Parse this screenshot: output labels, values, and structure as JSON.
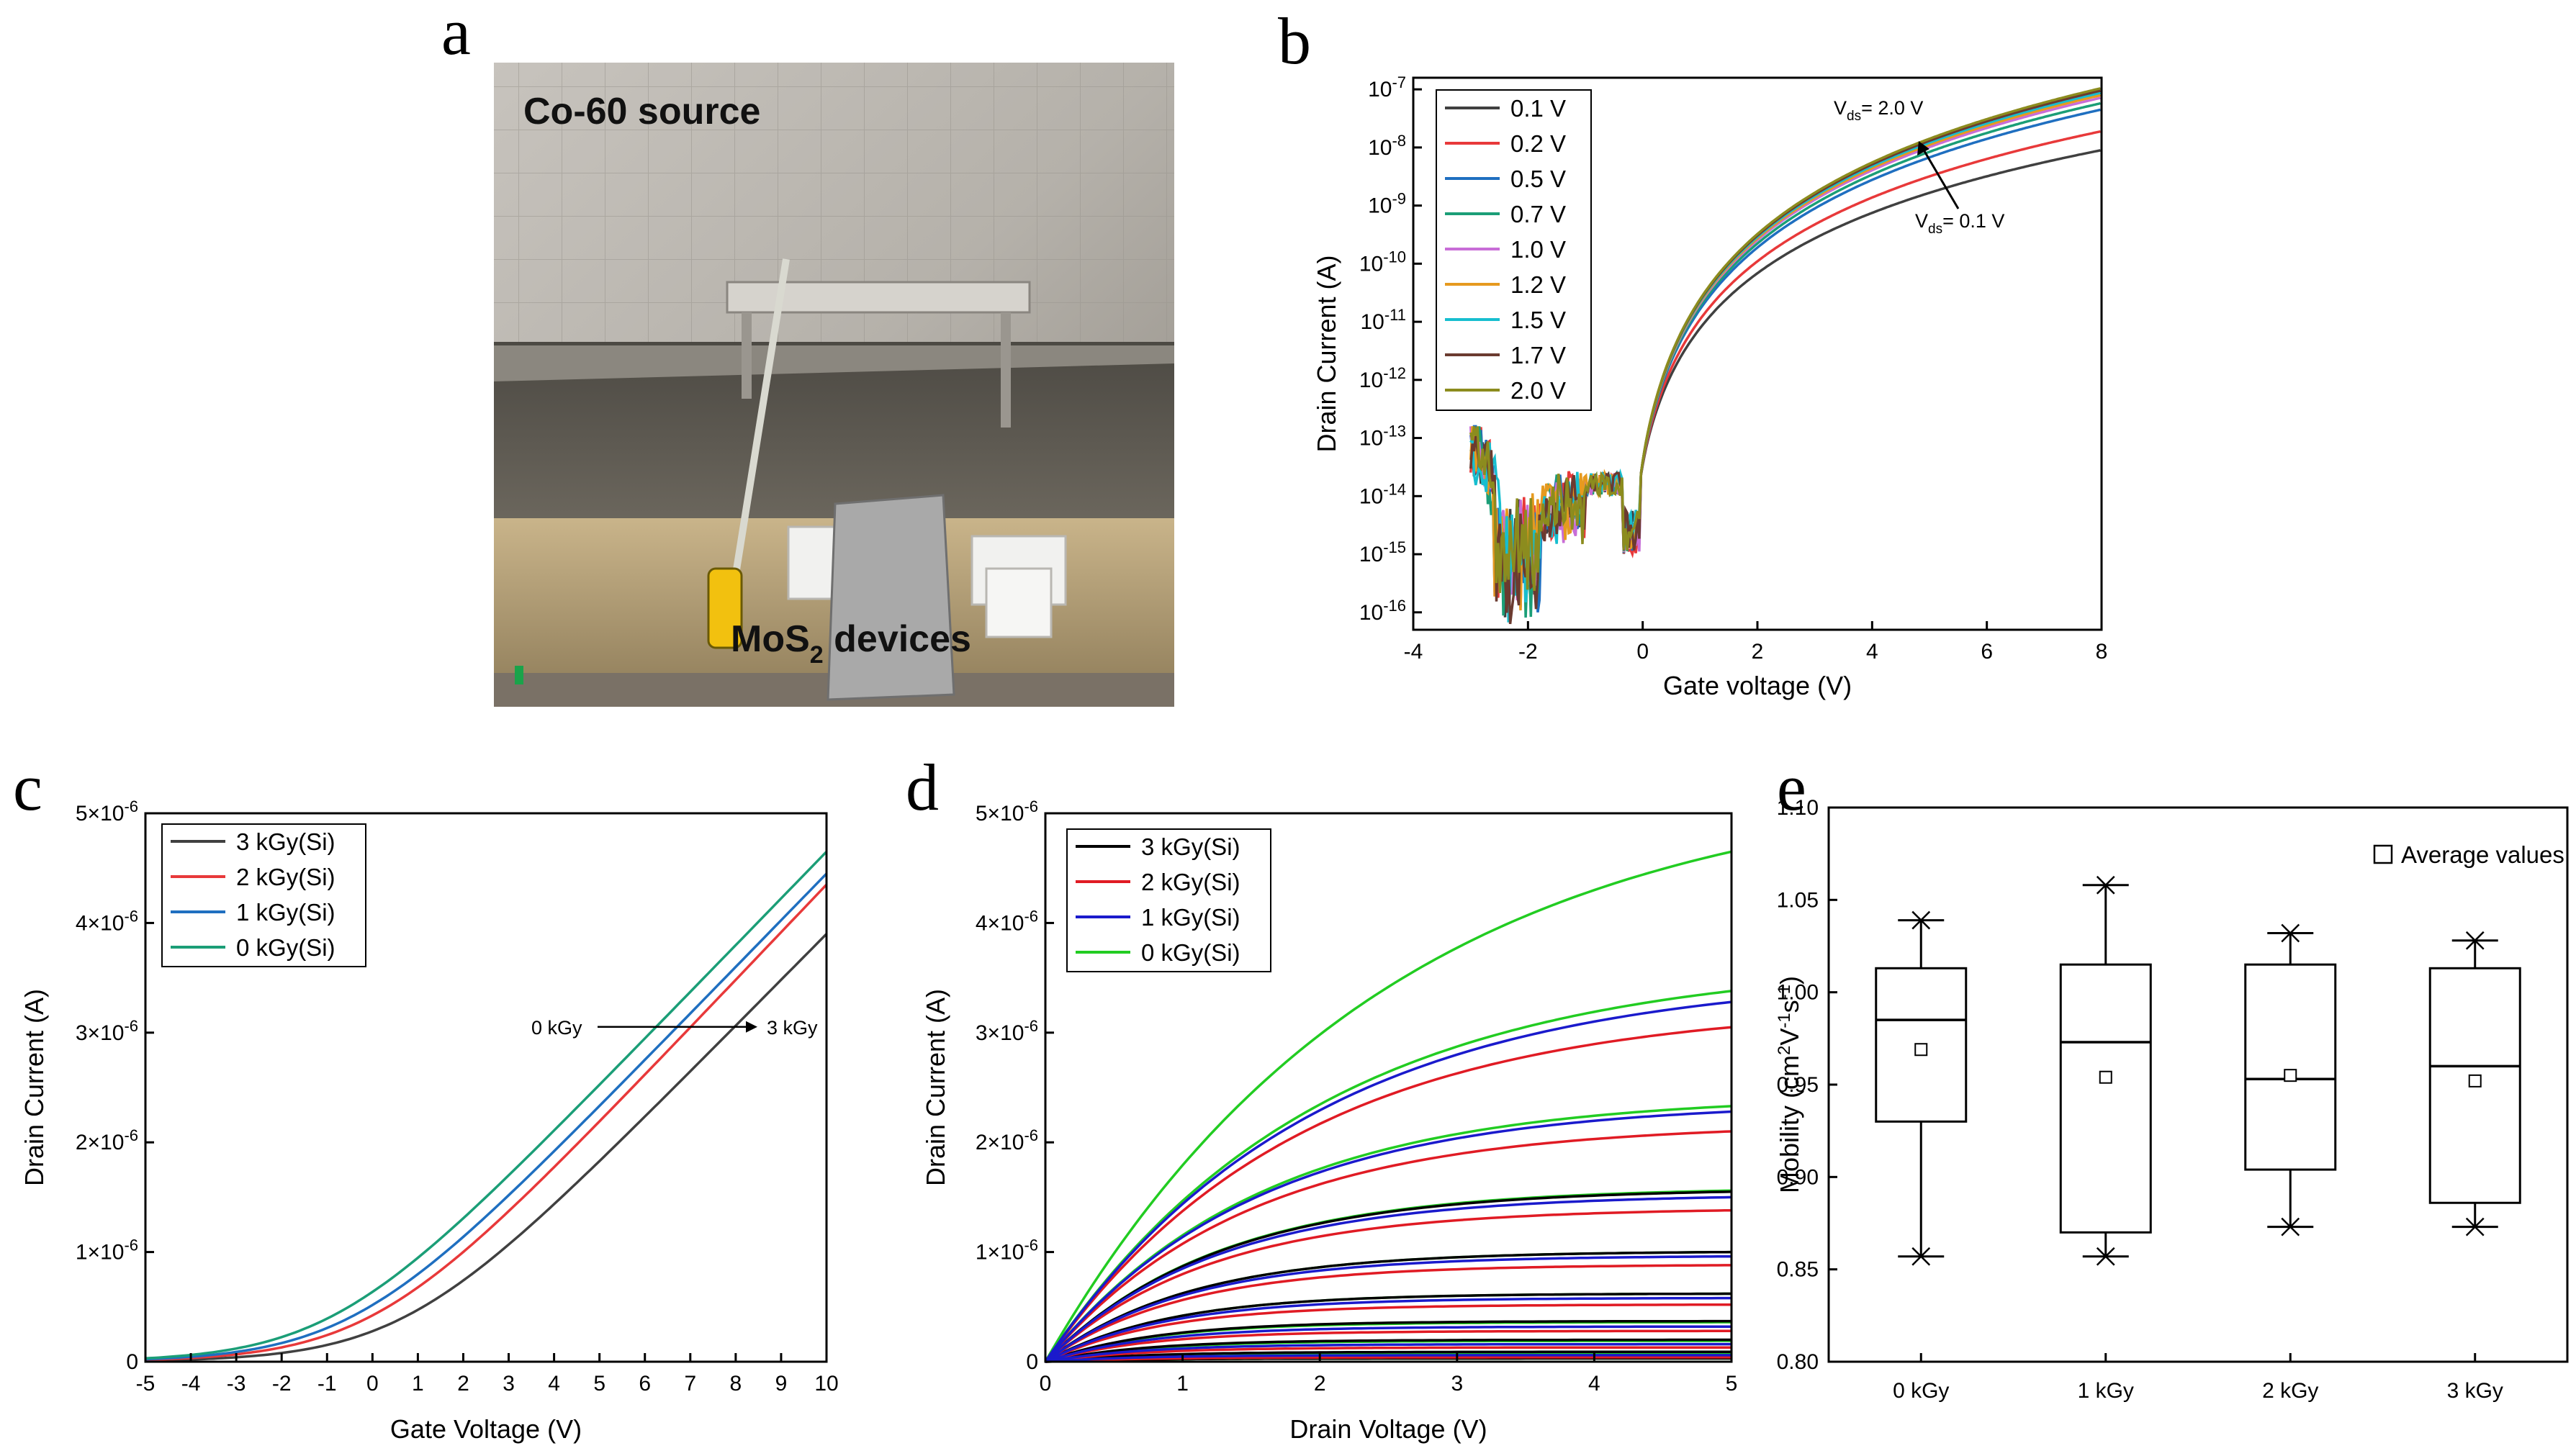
{
  "figure": {
    "panel_labels": [
      "a",
      "b",
      "c",
      "d",
      "e"
    ],
    "photo": {
      "source_label": "Co-60 source",
      "device_label": "MoS",
      "device_sub": "2",
      "device_suffix": " devices"
    }
  },
  "chart_data": [
    {
      "panel": "b",
      "type": "line",
      "yscale": "log",
      "xlabel": "Gate voltage (V)",
      "ylabel": "Drain Current (A)",
      "xlim": [
        -4,
        8
      ],
      "xticks": [
        -4,
        -2,
        0,
        2,
        4,
        6,
        8
      ],
      "ylim_exp": [
        -16.3,
        -6.8
      ],
      "yticks_exp": [
        -16,
        -15,
        -14,
        -13,
        -12,
        -11,
        -10,
        -9,
        -8,
        -7
      ],
      "legend_position": "top-left",
      "series": [
        {
          "name": "0.1 V",
          "color": "#404040",
          "vds": 0.1,
          "on_current": 9e-09
        },
        {
          "name": "0.2 V",
          "color": "#e8393a",
          "vds": 0.2,
          "on_current": 1.9e-08
        },
        {
          "name": "0.5 V",
          "color": "#1f6fc0",
          "vds": 0.5,
          "on_current": 4.5e-08
        },
        {
          "name": "0.7 V",
          "color": "#1b9e77",
          "vds": 0.7,
          "on_current": 5.8e-08
        },
        {
          "name": "1.0 V",
          "color": "#c86dd7",
          "vds": 1.0,
          "on_current": 7.2e-08
        },
        {
          "name": "1.2 V",
          "color": "#e69a1f",
          "vds": 1.2,
          "on_current": 8e-08
        },
        {
          "name": "1.5 V",
          "color": "#17becf",
          "vds": 1.5,
          "on_current": 8.8e-08
        },
        {
          "name": "1.7 V",
          "color": "#6b3b30",
          "vds": 1.7,
          "on_current": 9.6e-08
        },
        {
          "name": "2.0 V",
          "color": "#8c8c1e",
          "vds": 2.0,
          "on_current": 1.05e-07
        }
      ],
      "annotations": [
        {
          "base": "V",
          "sub": "ds",
          "text": "= 2.0 V"
        },
        {
          "base": "V",
          "sub": "ds",
          "text": "= 0.1 V"
        }
      ]
    },
    {
      "panel": "c",
      "type": "line",
      "xlabel": "Gate Voltage (V)",
      "ylabel": "Drain Current (A)",
      "xlim": [
        -5,
        10
      ],
      "xticks": [
        -5,
        -4,
        -3,
        -2,
        -1,
        0,
        1,
        2,
        3,
        4,
        5,
        6,
        7,
        8,
        9,
        10
      ],
      "ylim": [
        0,
        5e-06
      ],
      "yticks": [
        0,
        1e-06,
        2e-06,
        3e-06,
        4e-06,
        5e-06
      ],
      "legend_position": "top-left",
      "series": [
        {
          "name": "3 kGy(Si)",
          "color": "#404040",
          "shift": 1.6,
          "end": 3.9e-06
        },
        {
          "name": "2 kGy(Si)",
          "color": "#e8393a",
          "shift": 0.9,
          "end": 4.35e-06
        },
        {
          "name": "1 kGy(Si)",
          "color": "#1f6fc0",
          "shift": 0.45,
          "end": 4.45e-06
        },
        {
          "name": "0 kGy(Si)",
          "color": "#1b9e77",
          "shift": 0.0,
          "end": 4.65e-06
        }
      ],
      "annotation": {
        "from": "0 kGy",
        "to": "3 kGy",
        "y": 3e-06
      }
    },
    {
      "panel": "d",
      "type": "line",
      "xlabel": "Drain Voltage (V)",
      "ylabel": "Drain Current (A)",
      "xlim": [
        0,
        5
      ],
      "xticks": [
        0,
        1,
        2,
        3,
        4,
        5
      ],
      "ylim": [
        0,
        5e-06
      ],
      "yticks": [
        0,
        1e-06,
        2e-06,
        3e-06,
        4e-06,
        5e-06
      ],
      "legend_position": "top-left",
      "series": [
        {
          "name": "3 kGy(Si)",
          "color": "#000000",
          "saturation": [
            1.55e-06,
            1e-06,
            6.2e-07,
            3.7e-07,
            2e-07,
            9e-08,
            3e-08
          ]
        },
        {
          "name": "2 kGy(Si)",
          "color": "#e01b24",
          "saturation": [
            3.05e-06,
            2.1e-06,
            1.38e-06,
            8.8e-07,
            5.2e-07,
            2.8e-07,
            1.3e-07,
            4e-08
          ]
        },
        {
          "name": "1 kGy(Si)",
          "color": "#1a1acc",
          "saturation": [
            3.28e-06,
            2.28e-06,
            1.5e-06,
            9.6e-07,
            5.8e-07,
            3.2e-07,
            1.6e-07,
            6e-08
          ]
        },
        {
          "name": "0 kGy(Si)",
          "color": "#22cc22",
          "saturation": [
            4.65e-06,
            3.38e-06,
            2.33e-06,
            1.56e-06,
            1e-06,
            6.2e-07,
            3.6e-07,
            1.9e-07,
            8e-08,
            3e-08
          ]
        }
      ]
    },
    {
      "panel": "e",
      "type": "box",
      "ylabel_base": "Mobility (cm",
      "ylabel_sup1": "2",
      "ylabel_mid": "V",
      "ylabel_sup2": "-1",
      "ylabel_mid2": "s",
      "ylabel_sup3": "-1",
      "ylabel_end": ")",
      "ylim": [
        0.8,
        1.1
      ],
      "yticks": [
        "0.80",
        "0.85",
        "0.90",
        "0.95",
        "1.00",
        "1.05",
        "1.10"
      ],
      "categories": [
        "0 kGy",
        "1 kGy",
        "2 kGy",
        "3 kGy"
      ],
      "boxes": [
        {
          "min": 0.857,
          "q1": 0.93,
          "median": 0.985,
          "q3": 1.013,
          "max": 1.039,
          "mean": 0.969
        },
        {
          "min": 0.857,
          "q1": 0.87,
          "median": 0.973,
          "q3": 1.015,
          "max": 1.058,
          "mean": 0.954
        },
        {
          "min": 0.873,
          "q1": 0.904,
          "median": 0.953,
          "q3": 1.015,
          "max": 1.032,
          "mean": 0.955
        },
        {
          "min": 0.873,
          "q1": 0.886,
          "median": 0.96,
          "q3": 1.013,
          "max": 1.028,
          "mean": 0.952
        }
      ],
      "legend": "Average values"
    }
  ]
}
